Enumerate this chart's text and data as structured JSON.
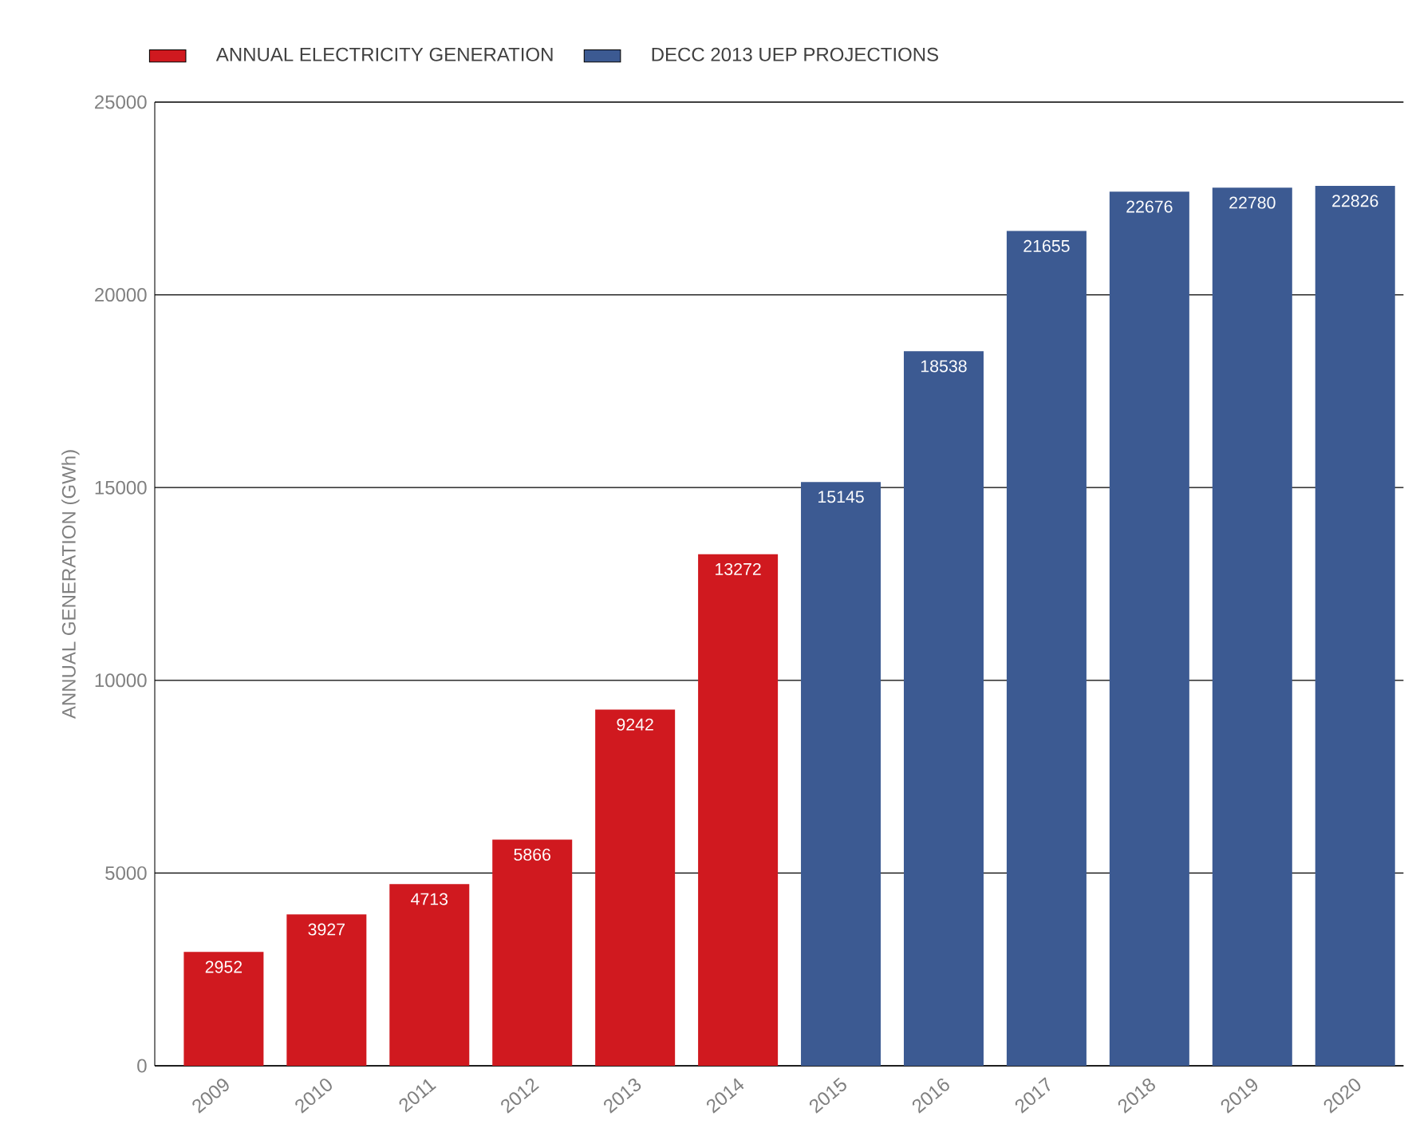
{
  "chart_data": {
    "type": "bar",
    "categories": [
      "2009",
      "2010",
      "2011",
      "2012",
      "2013",
      "2014",
      "2015",
      "2016",
      "2017",
      "2018",
      "2019",
      "2020"
    ],
    "ylabel": "ANNUAL GENERATION (GWh)",
    "ylim": [
      0,
      25000
    ],
    "yticks": [
      0,
      5000,
      10000,
      15000,
      20000,
      25000
    ],
    "grid": "y",
    "legend": "top left",
    "data_labels": true,
    "series": [
      {
        "name": "ANNUAL ELECTRICITY GENERATION",
        "color": "#d0191f",
        "values": [
          2952,
          3927,
          4713,
          5866,
          9242,
          13272,
          null,
          null,
          null,
          null,
          null,
          null
        ]
      },
      {
        "name": "DECC 2013 UEP PROJECTIONS",
        "color": "#3c5a92",
        "values": [
          null,
          null,
          null,
          null,
          null,
          null,
          15145,
          18538,
          21655,
          22676,
          22780,
          22826
        ]
      }
    ]
  }
}
